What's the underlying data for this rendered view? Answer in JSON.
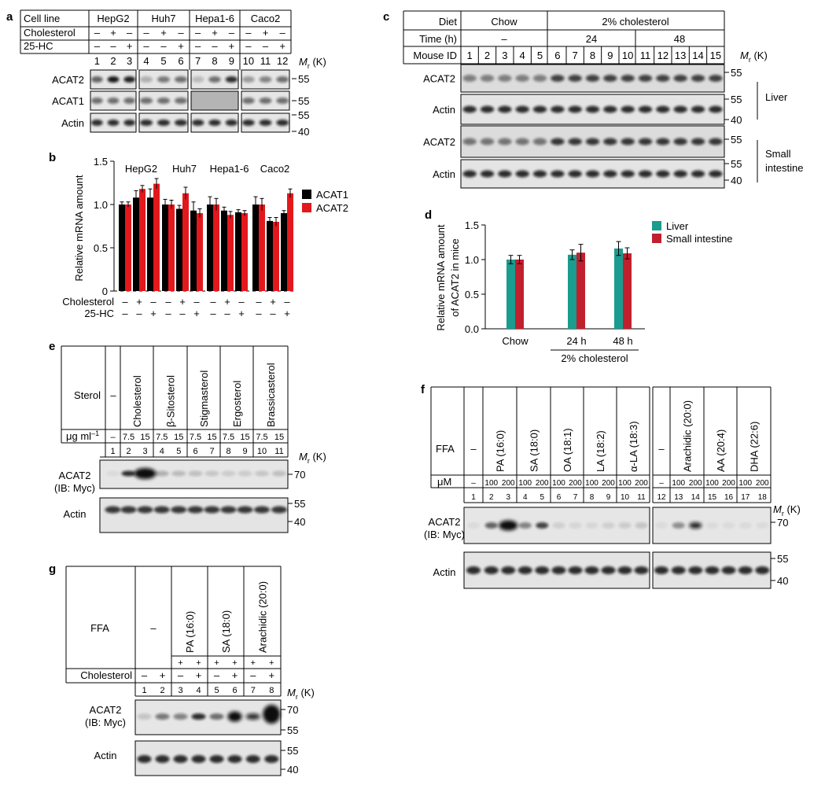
{
  "panel_a": {
    "letter": "a",
    "hdr_cell": "Cell line",
    "cell_lines": [
      "HepG2",
      "Huh7",
      "Hepa1-6",
      "Caco2"
    ],
    "hdr_chol": "Cholesterol",
    "hdr_hc": "25-HC",
    "chol": [
      "–",
      "+",
      "–",
      "–",
      "+",
      "–",
      "–",
      "+",
      "–",
      "–",
      "+",
      "–"
    ],
    "hc": [
      "–",
      "–",
      "+",
      "–",
      "–",
      "+",
      "–",
      "–",
      "+",
      "–",
      "–",
      "+"
    ],
    "lanes": [
      "1",
      "2",
      "3",
      "4",
      "5",
      "6",
      "7",
      "8",
      "9",
      "10",
      "11",
      "12"
    ],
    "blots": [
      "ACAT2",
      "ACAT1",
      "Actin"
    ],
    "markers": [
      "55",
      "55",
      "55",
      "40"
    ],
    "mr": "M",
    "mr_sub": "r",
    "mr_unit": " (K)"
  },
  "panel_b": {
    "letter": "b",
    "ylabel": "Relative mRNA amount",
    "yticks": [
      "0",
      "0.5",
      "1.0",
      "1.5"
    ],
    "groups": [
      "HepG2",
      "Huh7",
      "Hepa1-6",
      "Caco2"
    ],
    "row_chol": "Cholesterol",
    "row_hc": "25-HC",
    "chol": [
      "–",
      "+",
      "–",
      "–",
      "+",
      "–",
      "–",
      "+",
      "–",
      "–",
      "+",
      "–"
    ],
    "hc": [
      "–",
      "–",
      "+",
      "–",
      "–",
      "+",
      "–",
      "–",
      "+",
      "–",
      "–",
      "+"
    ],
    "legend": [
      "ACAT1",
      "ACAT2"
    ]
  },
  "panel_c": {
    "letter": "c",
    "hdr_diet": "Diet",
    "diet_chow": "Chow",
    "diet_chol": "2% cholesterol",
    "hdr_time": "Time (h)",
    "time_chow": "–",
    "time_24": "24",
    "time_48": "48",
    "hdr_mouse": "Mouse ID",
    "mice": [
      "1",
      "2",
      "3",
      "4",
      "5",
      "6",
      "7",
      "8",
      "9",
      "10",
      "11",
      "12",
      "13",
      "14",
      "15"
    ],
    "blots": [
      "ACAT2",
      "Actin",
      "ACAT2",
      "Actin"
    ],
    "markers": [
      "55",
      "55",
      "40",
      "55",
      "55",
      "40"
    ],
    "tissue_liver": "Liver",
    "tissue_small": "Small",
    "tissue_intestine": "intestine",
    "mr": "M",
    "mr_sub": "r",
    "mr_unit": " (K)"
  },
  "panel_d": {
    "letter": "d",
    "ylabel1": "Relative mRNA amount",
    "ylabel2": "of ACAT2 in mice",
    "yticks": [
      "0.0",
      "0.5",
      "1.0",
      "1.5"
    ],
    "categories": [
      "Chow",
      "24 h",
      "48 h"
    ],
    "group_label": "2% cholesterol",
    "legend": [
      "Liver",
      "Small intestine"
    ]
  },
  "panel_e": {
    "letter": "e",
    "hdr_sterol": "Sterol",
    "dash": "–",
    "sterols": [
      "Cholesterol",
      "β-Sitosterol",
      "Stigmasterol",
      "Ergosterol",
      "Brassicasterol"
    ],
    "hdr_ug": "μg ml",
    "hdr_ug_sup": "–1",
    "doses": [
      "–",
      "7.5",
      "15",
      "7.5",
      "15",
      "7.5",
      "15",
      "7.5",
      "15",
      "7.5",
      "15"
    ],
    "lanes": [
      "1",
      "2",
      "3",
      "4",
      "5",
      "6",
      "7",
      "8",
      "9",
      "10",
      "11"
    ],
    "blot1_line1": "ACAT2",
    "blot1_line2": "(IB: Myc)",
    "blot2": "Actin",
    "markers": [
      "70",
      "55",
      "40"
    ],
    "mr": "M",
    "mr_sub": "r",
    "mr_unit": " (K)"
  },
  "panel_f": {
    "letter": "f",
    "hdr_ffa": "FFA",
    "dash": "–",
    "ffas_left": [
      "PA (16:0)",
      "SA (18:0)",
      "OA (18:1)",
      "LA (18:2)",
      "α-LA (18:3)"
    ],
    "ffas_right": [
      "Arachidic (20:0)",
      "AA (20:4)",
      "DHA (22:6)"
    ],
    "hdr_um": "μM",
    "doses": [
      "–",
      "100",
      "200",
      "100",
      "200",
      "100",
      "200",
      "100",
      "200",
      "100",
      "200",
      "–",
      "100",
      "200",
      "100",
      "200",
      "100",
      "200"
    ],
    "lanes": [
      "1",
      "2",
      "3",
      "4",
      "5",
      "6",
      "7",
      "8",
      "9",
      "10",
      "11",
      "12",
      "13",
      "14",
      "15",
      "16",
      "17",
      "18"
    ],
    "blot1_line1": "ACAT2",
    "blot1_line2": "(IB: Myc)",
    "blot2": "Actin",
    "markers": [
      "70",
      "55",
      "40"
    ],
    "mr": "M",
    "mr_sub": "r",
    "mr_unit": " (K)"
  },
  "panel_g": {
    "letter": "g",
    "hdr_ffa": "FFA",
    "dash": "–",
    "ffas": [
      "PA (16:0)",
      "SA (18:0)",
      "Arachidic (20:0)"
    ],
    "ffa_row": [
      "+",
      "+",
      "+",
      "+",
      "+",
      "+"
    ],
    "hdr_chol": "Cholesterol",
    "chol": [
      "–",
      "+",
      "–",
      "+",
      "–",
      "+",
      "–",
      "+"
    ],
    "lanes": [
      "1",
      "2",
      "3",
      "4",
      "5",
      "6",
      "7",
      "8"
    ],
    "blot1_line1": "ACAT2",
    "blot1_line2": "(IB: Myc)",
    "blot2": "Actin",
    "markers": [
      "70",
      "55",
      "55",
      "40"
    ],
    "mr": "M",
    "mr_sub": "r",
    "mr_unit": " (K)"
  },
  "chart_data": [
    {
      "type": "bar",
      "panel": "b",
      "title": "",
      "xlabel": "",
      "ylabel": "Relative mRNA amount",
      "ylim": [
        0,
        1.5
      ],
      "categories": [
        "HepG2 1",
        "HepG2 2",
        "HepG2 3",
        "Huh7 1",
        "Huh7 2",
        "Huh7 3",
        "Hepa1-6 1",
        "Hepa1-6 2",
        "Hepa1-6 3",
        "Caco2 1",
        "Caco2 2",
        "Caco2 3"
      ],
      "series": [
        {
          "name": "ACAT1",
          "color": "#000000",
          "values": [
            1.0,
            1.08,
            1.08,
            1.0,
            0.95,
            0.93,
            1.0,
            0.93,
            0.91,
            1.0,
            0.81,
            0.9
          ],
          "errors": [
            0.03,
            0.08,
            0.1,
            0.06,
            0.04,
            0.1,
            0.09,
            0.04,
            0.03,
            0.09,
            0.04,
            0.03
          ]
        },
        {
          "name": "ACAT2",
          "color": "#e3181c",
          "values": [
            1.0,
            1.18,
            1.24,
            1.0,
            1.13,
            0.9,
            1.0,
            0.88,
            0.9,
            1.0,
            0.8,
            1.13
          ],
          "errors": [
            0.03,
            0.04,
            0.06,
            0.05,
            0.07,
            0.05,
            0.07,
            0.04,
            0.03,
            0.07,
            0.05,
            0.05
          ]
        }
      ]
    },
    {
      "type": "bar",
      "panel": "d",
      "title": "",
      "xlabel": "",
      "ylabel": "Relative mRNA amount of ACAT2 in mice",
      "ylim": [
        0,
        1.5
      ],
      "categories": [
        "Chow",
        "24 h",
        "48 h"
      ],
      "series": [
        {
          "name": "Liver",
          "color": "#1a9c8f",
          "values": [
            1.0,
            1.07,
            1.16
          ],
          "errors": [
            0.06,
            0.07,
            0.1
          ]
        },
        {
          "name": "Small intestine",
          "color": "#c0202e",
          "values": [
            1.0,
            1.1,
            1.09
          ],
          "errors": [
            0.06,
            0.12,
            0.08
          ]
        }
      ],
      "legend": "top-right",
      "grid": false
    }
  ]
}
